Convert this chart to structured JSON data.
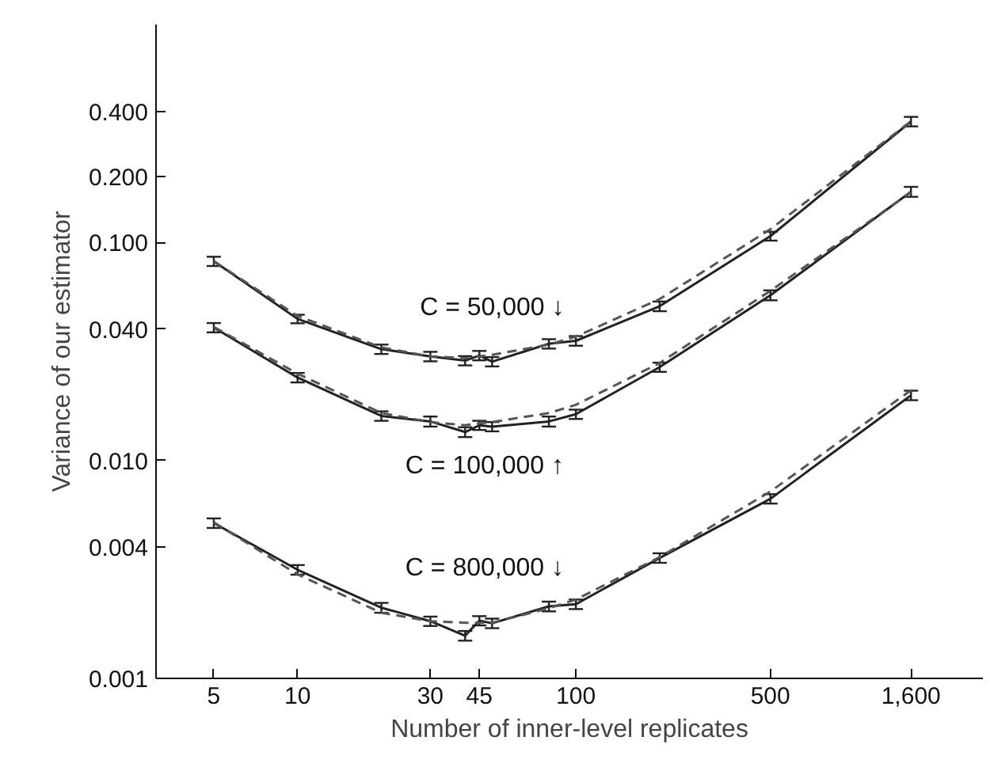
{
  "chart_data": {
    "type": "line",
    "xlabel": "Number of inner-level replicates",
    "ylabel": "Variance of our estimator",
    "log": "xy",
    "grid": false,
    "marker": "none",
    "x": [
      5,
      10,
      20,
      30,
      40,
      45,
      50,
      80,
      100,
      200,
      500,
      1600
    ],
    "xlim": [
      3.1,
      2900
    ],
    "ylim": [
      0.001,
      1
    ],
    "xticks": [
      5,
      10,
      30,
      45,
      100,
      500,
      {
        "value": 1600,
        "label": "1,600"
      }
    ],
    "yticks": [
      {
        "value": 0.001,
        "label": "0.001"
      },
      {
        "value": 0.004,
        "label": "0.004"
      },
      {
        "value": 0.01,
        "label": "0.010"
      },
      {
        "value": 0.04,
        "label": "0.040"
      },
      {
        "value": 0.1,
        "label": "0.100"
      },
      {
        "value": 0.2,
        "label": "0.200"
      },
      {
        "value": 0.4,
        "label": "0.400"
      }
    ],
    "series": [
      {
        "color": "#222222",
        "line_style": "solid",
        "values": [
          0.082,
          0.0446,
          0.0324,
          0.03,
          0.0287,
          0.0303,
          0.0284,
          0.0343,
          0.0354,
          0.051,
          0.107,
          0.359
        ],
        "errors": [
          0.004,
          0.002,
          0.0016,
          0.0015,
          0.0014,
          0.0015,
          0.0014,
          0.0017,
          0.0018,
          0.0026,
          0.005,
          0.018
        ]
      },
      {
        "color": "#555555",
        "line_style": "dashed",
        "values": [
          0.082,
          0.046,
          0.033,
          0.03,
          0.0295,
          0.03,
          0.0305,
          0.034,
          0.037,
          0.055,
          0.115,
          0.36
        ]
      },
      {
        "color": "#222222",
        "line_style": "solid",
        "values": [
          0.0407,
          0.024,
          0.016,
          0.0151,
          0.0135,
          0.0145,
          0.0143,
          0.0151,
          0.0163,
          0.0268,
          0.0573,
          0.171
        ],
        "errors": [
          0.002,
          0.0012,
          0.0008,
          0.0008,
          0.0007,
          0.0007,
          0.0007,
          0.0008,
          0.0008,
          0.0013,
          0.003,
          0.009
        ]
      },
      {
        "color": "#555555",
        "line_style": "dashed",
        "values": [
          0.041,
          0.025,
          0.0165,
          0.015,
          0.0145,
          0.0148,
          0.015,
          0.0165,
          0.018,
          0.028,
          0.06,
          0.17
        ]
      },
      {
        "color": "#222222",
        "line_style": "solid",
        "values": [
          0.00516,
          0.00315,
          0.00211,
          0.00183,
          0.00157,
          0.00184,
          0.00179,
          0.00214,
          0.00219,
          0.00357,
          0.00667,
          0.0199
        ],
        "errors": [
          0.00026,
          0.00016,
          0.00011,
          9e-05,
          8e-05,
          9e-05,
          9e-05,
          0.00011,
          0.00011,
          0.00018,
          0.00033,
          0.001
        ]
      },
      {
        "color": "#555555",
        "line_style": "dashed",
        "values": [
          0.0052,
          0.003,
          0.002,
          0.00183,
          0.0018,
          0.0018,
          0.0018,
          0.0021,
          0.0023,
          0.0036,
          0.0072,
          0.021
        ]
      }
    ],
    "annotations": [
      "C = 50,000 ↓",
      "C = 100,000 ↑",
      "C = 800,000 ↓"
    ]
  }
}
